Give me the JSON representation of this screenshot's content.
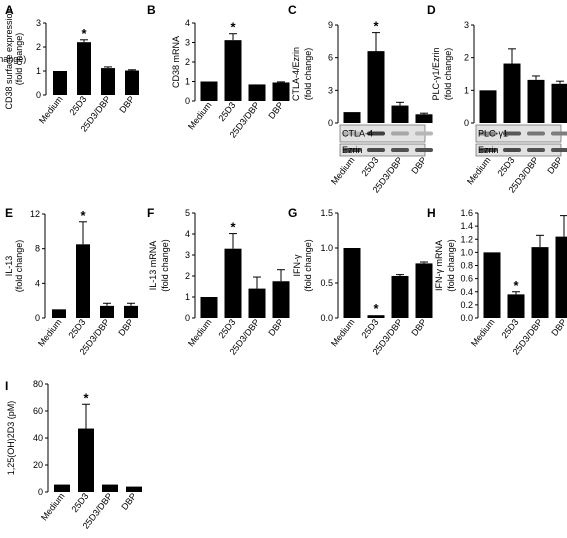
{
  "chart_data": [
    {
      "panel": "A",
      "type": "bar",
      "categories": [
        "Medium",
        "25D3",
        "25D3/DBP",
        "DBP"
      ],
      "values": [
        1.0,
        2.2,
        1.12,
        1.02
      ],
      "errors": [
        0.0,
        0.1,
        0.05,
        0.03
      ],
      "significant": [
        false,
        true,
        false,
        false
      ],
      "ylabel": [
        "CD38 surface expression",
        "(fold change)"
      ],
      "ylim": [
        0,
        3
      ],
      "yticks": [
        "0",
        "1",
        "2",
        "3"
      ]
    },
    {
      "panel": "B",
      "type": "bar",
      "categories": [
        "Medium",
        "25D3",
        "25D3/DBP",
        "DBP"
      ],
      "values": [
        1.0,
        3.12,
        0.85,
        0.95
      ],
      "errors": [
        0.0,
        0.33,
        0.0,
        0.03
      ],
      "significant": [
        false,
        true,
        false,
        false
      ],
      "ylabel": [
        "CD38 mRNA",
        "(fold change)"
      ],
      "ylim": [
        0,
        4
      ],
      "yticks": [
        "0",
        "1",
        "2",
        "3",
        "4"
      ]
    },
    {
      "panel": "C",
      "type": "bar",
      "categories": [
        "Medium",
        "25D3",
        "25D3/DBP",
        "DBP"
      ],
      "values": [
        1.0,
        6.6,
        1.6,
        0.8
      ],
      "errors": [
        0.0,
        1.7,
        0.3,
        0.1
      ],
      "significant": [
        false,
        true,
        false,
        false
      ],
      "ylabel": [
        "CTLA-4/Ezrin",
        "(fold change)"
      ],
      "ylim": [
        0,
        9
      ],
      "yticks": [
        "0",
        "3",
        "6",
        "9"
      ],
      "blots": [
        "CTLA-4",
        "Ezrin"
      ]
    },
    {
      "panel": "D",
      "type": "bar",
      "categories": [
        "Medium",
        "25D3",
        "25D3/DBP",
        "DBP"
      ],
      "values": [
        1.0,
        1.82,
        1.32,
        1.2
      ],
      "errors": [
        0.0,
        0.45,
        0.12,
        0.08
      ],
      "significant": [
        false,
        false,
        false,
        false
      ],
      "ylabel": [
        "PLC-γ1/Ezrin",
        "(fold change)"
      ],
      "ylim": [
        0,
        3
      ],
      "yticks": [
        "0",
        "1",
        "2",
        "3"
      ],
      "blots": [
        "PLC-γ1",
        "Ezrin"
      ]
    },
    {
      "panel": "E",
      "type": "bar",
      "categories": [
        "Medium",
        "25D3",
        "25D3/DBP",
        "DBP"
      ],
      "values": [
        1.0,
        8.5,
        1.4,
        1.4
      ],
      "errors": [
        0.0,
        2.6,
        0.3,
        0.3
      ],
      "significant": [
        false,
        true,
        false,
        false
      ],
      "ylabel": [
        "IL-13",
        "(fold change)"
      ],
      "ylim": [
        0,
        12
      ],
      "yticks": [
        "0",
        "4",
        "8",
        "12"
      ]
    },
    {
      "panel": "F",
      "type": "bar",
      "categories": [
        "Medium",
        "25D3",
        "25D3/DBP",
        "DBP"
      ],
      "values": [
        1.0,
        3.3,
        1.4,
        1.75
      ],
      "errors": [
        0.0,
        0.72,
        0.55,
        0.55
      ],
      "significant": [
        false,
        true,
        false,
        false
      ],
      "ylabel": [
        "IL-13 mRNA",
        "(fold change)"
      ],
      "ylim": [
        0,
        5
      ],
      "yticks": [
        "0",
        "1",
        "2",
        "3",
        "4",
        "5"
      ]
    },
    {
      "panel": "G",
      "type": "bar",
      "categories": [
        "Medium",
        "25D3",
        "25D3/DBP",
        "DBP"
      ],
      "values": [
        1.0,
        0.04,
        0.6,
        0.78
      ],
      "errors": [
        0.0,
        0.0,
        0.02,
        0.02
      ],
      "significant": [
        false,
        true,
        false,
        false
      ],
      "ylabel": [
        "IFN-γ",
        "(fold change)"
      ],
      "ylim": [
        0,
        1.5
      ],
      "yticks": [
        "0.0",
        "0.5",
        "1.0",
        "1.5"
      ]
    },
    {
      "panel": "H",
      "type": "bar",
      "categories": [
        "Medium",
        "25D3",
        "25D3/DBP",
        "DBP"
      ],
      "values": [
        1.0,
        0.36,
        1.08,
        1.24
      ],
      "errors": [
        0.0,
        0.04,
        0.18,
        0.32
      ],
      "significant": [
        false,
        true,
        false,
        false
      ],
      "ylabel": [
        "IFN-γ mRNA",
        "(fold change)"
      ],
      "ylim": [
        0,
        1.6
      ],
      "yticks": [
        "0.0",
        "0.2",
        "0.4",
        "0.6",
        "0.8",
        "1.0",
        "1.2",
        "1.4",
        "1.6"
      ]
    },
    {
      "panel": "I",
      "type": "bar",
      "categories": [
        "Medium",
        "25D3",
        "25D3/DBP",
        "DBP"
      ],
      "values": [
        5.5,
        47,
        5.5,
        4
      ],
      "errors": [
        0.0,
        18,
        0.0,
        0.0
      ],
      "significant": [
        false,
        true,
        false,
        false
      ],
      "ylabel": [
        "1,25(OH)2D3 (pM)"
      ],
      "ylim": [
        0,
        80
      ],
      "yticks": [
        "0",
        "20",
        "40",
        "60",
        "80"
      ]
    }
  ]
}
